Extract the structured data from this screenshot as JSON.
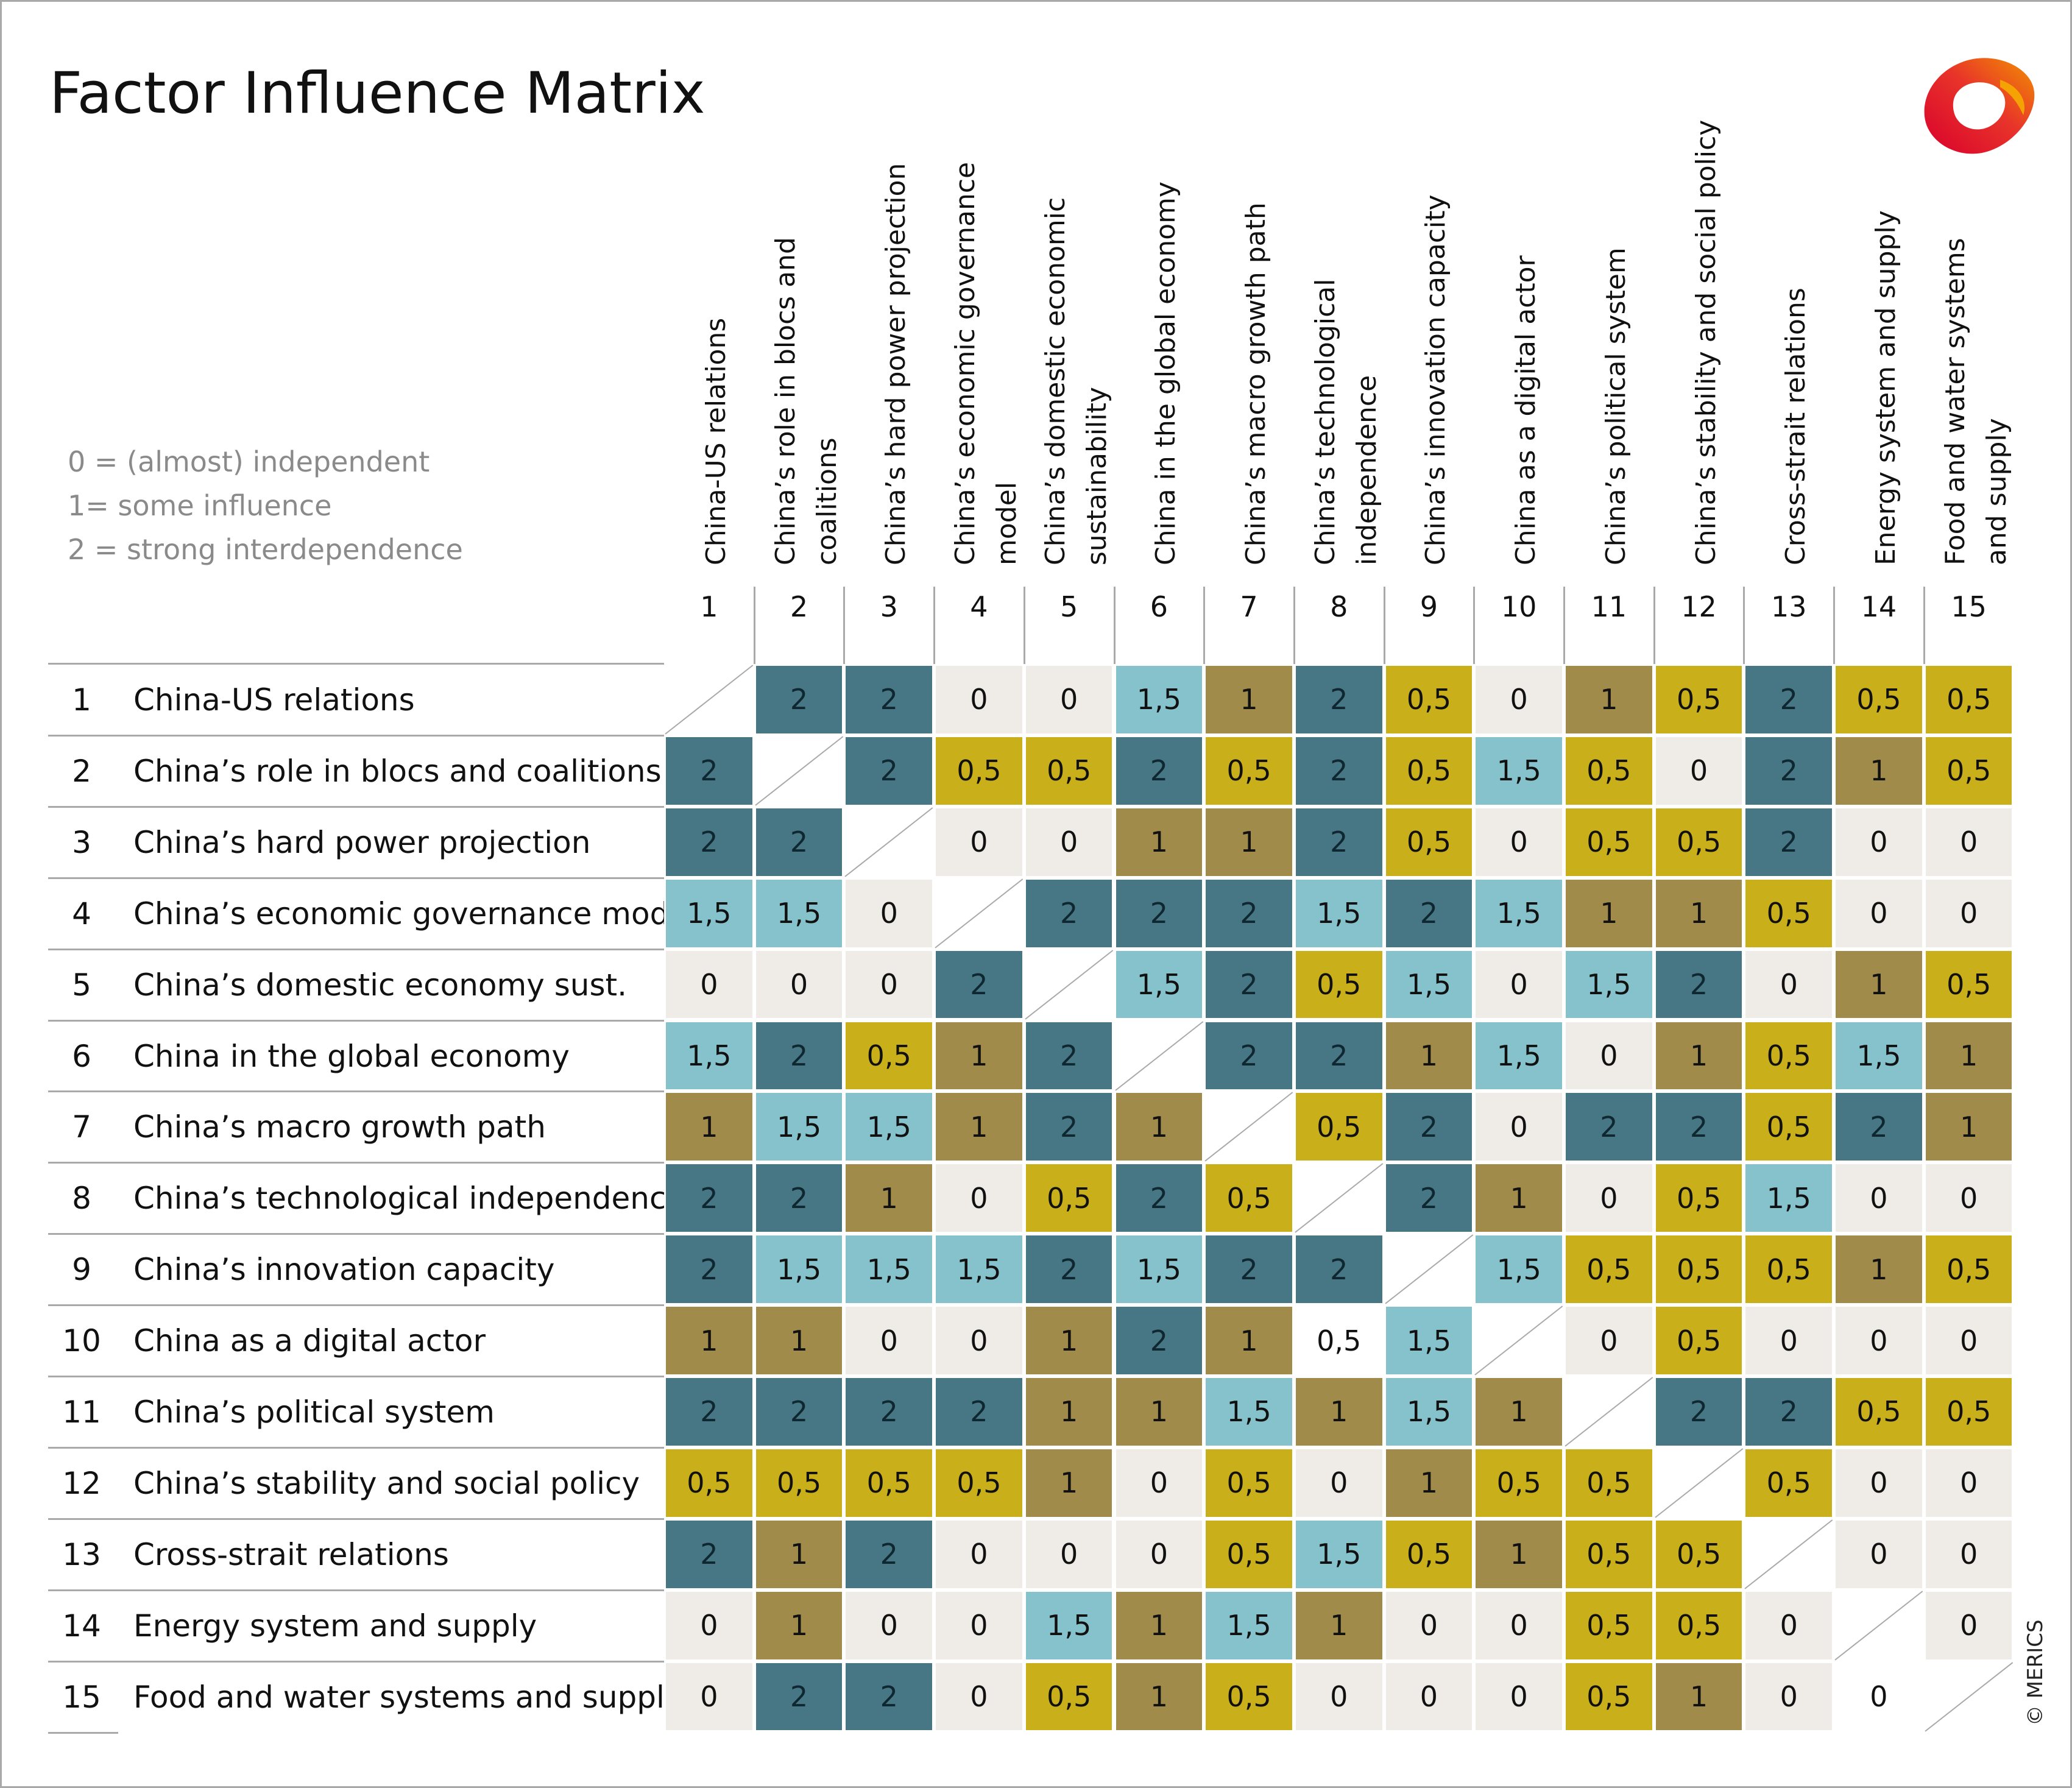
{
  "title": "Factor Influence Matrix",
  "legend": [
    "0 = (almost) independent",
    "1= some influence",
    "2 = strong interdependence"
  ],
  "copyright": "© MERICS",
  "colors": {
    "v0": "#efebe6",
    "v05": "#c9af1a",
    "v1": "#a08b4a",
    "v15": "#85c2cb",
    "v2": "#477684",
    "zero_white": "#ffffff",
    "grid": "#a9a9a9",
    "logo_orange": "#f29100",
    "logo_red": "#d9002c"
  },
  "chart_data": {
    "type": "heatmap",
    "title": "Factor Influence Matrix",
    "value_scale": {
      "0": "(almost) independent",
      "1": "some influence",
      "2": "strong interdependence"
    },
    "column_numbers": [
      "1",
      "2",
      "3",
      "4",
      "5",
      "6",
      "7",
      "8",
      "9",
      "10",
      "11",
      "12",
      "13",
      "14",
      "15"
    ],
    "column_labels": [
      [
        "China-US relations"
      ],
      [
        "China’s role in blocs and",
        "coalitions"
      ],
      [
        "China’s hard power projection"
      ],
      [
        "China’s economic governance",
        "model"
      ],
      [
        "China’s domestic economic",
        "sustainability"
      ],
      [
        "China in the global economy"
      ],
      [
        "China’s macro growth path"
      ],
      [
        "China’s technological",
        "independence"
      ],
      [
        "China’s innovation capacity"
      ],
      [
        "China as a digital actor"
      ],
      [
        "China’s political system"
      ],
      [
        "China’s stability and social policy"
      ],
      [
        "Cross-strait relations"
      ],
      [
        "Energy system and supply"
      ],
      [
        "Food and water systems",
        "and supply"
      ]
    ],
    "rows": [
      {
        "num": "1",
        "label": "China-US relations",
        "cells": [
          null,
          "2",
          "2",
          "0",
          "0",
          "1,5",
          "1",
          "2",
          "0,5",
          "0",
          "1",
          "0,5",
          "2",
          "0,5",
          "0,5"
        ]
      },
      {
        "num": "2",
        "label": "China’s role in blocs and coalitions",
        "cells": [
          "2",
          null,
          "2",
          "0,5",
          "0,5",
          "2",
          "0,5",
          "2",
          "0,5",
          "1,5",
          "0,5",
          "0",
          "2",
          "1",
          "0,5"
        ]
      },
      {
        "num": "3",
        "label": "China’s hard power projection",
        "cells": [
          "2",
          "2",
          null,
          "0",
          "0",
          "1",
          "1",
          "2",
          "0,5",
          "0",
          "0,5",
          "0,5",
          "2",
          "0",
          "0"
        ]
      },
      {
        "num": "4",
        "label": "China’s economic governance model",
        "cells": [
          "1,5",
          "1,5",
          "0",
          null,
          "2",
          "2",
          "2",
          "1,5",
          "2",
          "1,5",
          "1",
          "1",
          "0,5",
          "0",
          "0"
        ]
      },
      {
        "num": "5",
        "label": "China’s domestic economy sust.",
        "cells": [
          "0",
          "0",
          "0",
          "2",
          null,
          "1,5",
          "2",
          "0,5",
          "1,5",
          "0",
          "1,5",
          "2",
          "0",
          "1",
          "0,5"
        ]
      },
      {
        "num": "6",
        "label": "China in the global economy",
        "cells": [
          "1,5",
          "2",
          "0,5",
          "1",
          "2",
          null,
          "2",
          "2",
          "1",
          "1,5",
          "0",
          "1",
          "0,5",
          "1,5",
          "1"
        ]
      },
      {
        "num": "7",
        "label": "China’s macro growth path",
        "cells": [
          "1",
          "1,5",
          "1,5",
          "1",
          "2",
          "1",
          null,
          "0,5",
          "2",
          "0",
          "2",
          "2",
          "0,5",
          "2",
          "1"
        ]
      },
      {
        "num": "8",
        "label": "China’s technological independence",
        "cells": [
          "2",
          "2",
          "1",
          "0",
          "0,5",
          "2",
          "0,5",
          null,
          "2",
          "1",
          "0",
          "0,5",
          "1,5",
          "0",
          "0"
        ]
      },
      {
        "num": "9",
        "label": "China’s innovation capacity",
        "cells": [
          "2",
          "1,5",
          "1,5",
          "1,5",
          "2",
          "1,5",
          "2",
          "2",
          null,
          "1,5",
          "0,5",
          "0,5",
          "0,5",
          "1",
          "0,5"
        ]
      },
      {
        "num": "10",
        "label": "China as a digital actor",
        "cells": [
          "1",
          "1",
          "0",
          "0",
          "1",
          "2",
          "1",
          "0,5w",
          "1,5",
          null,
          "0",
          "0,5",
          "0",
          "0",
          "0"
        ]
      },
      {
        "num": "11",
        "label": "China’s political system",
        "cells": [
          "2",
          "2",
          "2",
          "2",
          "1",
          "1",
          "1,5",
          "1",
          "1,5",
          "1",
          null,
          "2",
          "2",
          "0,5",
          "0,5"
        ]
      },
      {
        "num": "12",
        "label": "China’s stability and social policy",
        "cells": [
          "0,5",
          "0,5",
          "0,5",
          "0,5",
          "1",
          "0",
          "0,5",
          "0",
          "1",
          "0,5",
          "0,5",
          null,
          "0,5",
          "0",
          "0"
        ]
      },
      {
        "num": "13",
        "label": "Cross-strait relations",
        "cells": [
          "2",
          "1",
          "2",
          "0",
          "0",
          "0",
          "0,5",
          "1,5",
          "0,5",
          "1",
          "0,5",
          "0,5",
          null,
          "0",
          "0"
        ]
      },
      {
        "num": "14",
        "label": "Energy system and supply",
        "cells": [
          "0",
          "1",
          "0",
          "0",
          "1,5",
          "1",
          "1,5",
          "1",
          "0",
          "0",
          "0,5",
          "0,5",
          "0",
          null,
          "0"
        ]
      },
      {
        "num": "15",
        "label": "Food and water systems and supply",
        "cells": [
          "0",
          "2",
          "2",
          "0",
          "0,5",
          "1",
          "0,5",
          "0",
          "0",
          "0",
          "0,5",
          "1",
          "0",
          "0w",
          null
        ]
      }
    ]
  }
}
